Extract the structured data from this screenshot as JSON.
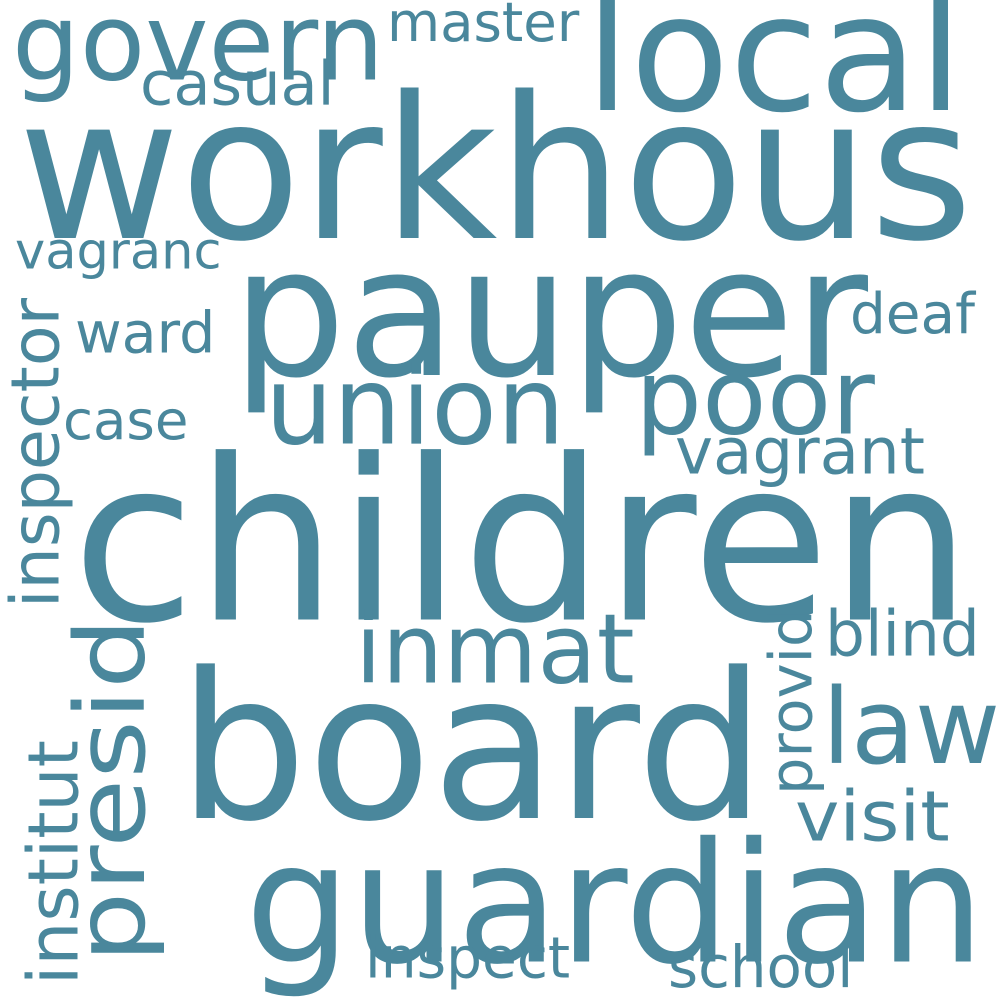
{
  "cloud": {
    "color": "#4a879c",
    "background": "#ffffff",
    "words": [
      {
        "text": "workhous",
        "orientation": "horizontal"
      },
      {
        "text": "pauper",
        "orientation": "horizontal"
      },
      {
        "text": "children",
        "orientation": "horizontal"
      },
      {
        "text": "board",
        "orientation": "horizontal"
      },
      {
        "text": "guardian",
        "orientation": "horizontal"
      },
      {
        "text": "local",
        "orientation": "horizontal"
      },
      {
        "text": "govern",
        "orientation": "horizontal"
      },
      {
        "text": "union",
        "orientation": "horizontal"
      },
      {
        "text": "poor",
        "orientation": "horizontal"
      },
      {
        "text": "inmat",
        "orientation": "horizontal"
      },
      {
        "text": "law",
        "orientation": "horizontal"
      },
      {
        "text": "presid",
        "orientation": "vertical"
      },
      {
        "text": "vagrant",
        "orientation": "horizontal"
      },
      {
        "text": "inspector",
        "orientation": "vertical"
      },
      {
        "text": "master",
        "orientation": "horizontal"
      },
      {
        "text": "casual",
        "orientation": "horizontal"
      },
      {
        "text": "vagranc",
        "orientation": "horizontal"
      },
      {
        "text": "ward",
        "orientation": "horizontal"
      },
      {
        "text": "case",
        "orientation": "horizontal"
      },
      {
        "text": "deaf",
        "orientation": "horizontal"
      },
      {
        "text": "blind",
        "orientation": "horizontal"
      },
      {
        "text": "provid",
        "orientation": "vertical"
      },
      {
        "text": "visit",
        "orientation": "horizontal"
      },
      {
        "text": "institut",
        "orientation": "vertical"
      },
      {
        "text": "inspect",
        "orientation": "horizontal"
      },
      {
        "text": "school",
        "orientation": "horizontal"
      }
    ]
  }
}
